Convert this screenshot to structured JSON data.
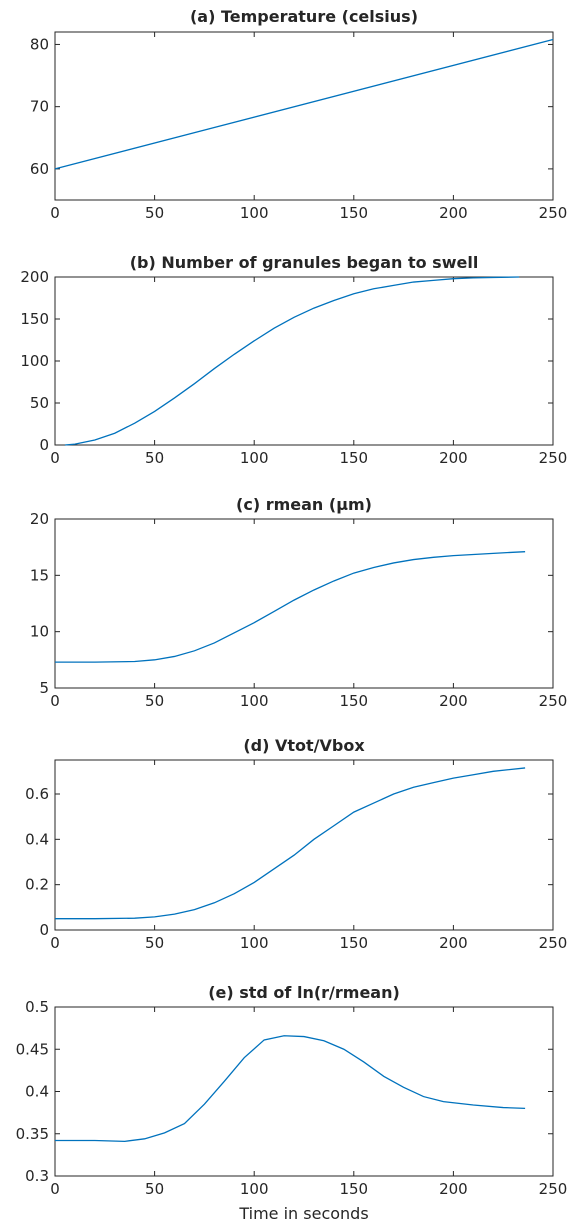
{
  "figure": {
    "xlabel": "Time in seconds"
  },
  "chart_data": [
    {
      "type": "line",
      "title": "(a) Temperature (celsius)",
      "xlabel": "",
      "ylabel": "",
      "xlim": [
        0,
        250
      ],
      "ylim": [
        55,
        82
      ],
      "xticks": [
        0,
        50,
        100,
        150,
        200,
        250
      ],
      "yticks": [
        60,
        70,
        80
      ],
      "grid": false,
      "color": "#0072BD",
      "series": [
        {
          "x": [
            0,
            250
          ],
          "y": [
            60,
            80.8
          ]
        }
      ]
    },
    {
      "type": "line",
      "title": "(b) Number of granules began to swell",
      "xlabel": "",
      "ylabel": "",
      "xlim": [
        0,
        250
      ],
      "ylim": [
        0,
        200
      ],
      "xticks": [
        0,
        50,
        100,
        150,
        200,
        250
      ],
      "yticks": [
        0,
        50,
        100,
        150,
        200
      ],
      "grid": false,
      "color": "#0072BD",
      "series": [
        {
          "x": [
            5,
            10,
            20,
            30,
            40,
            50,
            60,
            70,
            80,
            90,
            100,
            110,
            120,
            130,
            140,
            150,
            160,
            170,
            180,
            190,
            200,
            210,
            220,
            233
          ],
          "y": [
            0,
            1,
            6,
            14,
            26,
            40,
            56,
            73,
            91,
            108,
            124,
            139,
            152,
            163,
            172,
            180,
            186,
            190,
            194,
            196,
            198,
            199,
            199.5,
            200
          ]
        }
      ]
    },
    {
      "type": "line",
      "title": "(c) rmean (µm)",
      "xlabel": "",
      "ylabel": "",
      "xlim": [
        0,
        250
      ],
      "ylim": [
        5,
        20
      ],
      "xticks": [
        0,
        50,
        100,
        150,
        200,
        250
      ],
      "yticks": [
        5,
        10,
        15,
        20
      ],
      "grid": false,
      "color": "#0072BD",
      "series": [
        {
          "x": [
            0,
            20,
            40,
            50,
            60,
            70,
            80,
            90,
            100,
            110,
            120,
            130,
            140,
            150,
            160,
            170,
            180,
            190,
            200,
            210,
            220,
            236
          ],
          "y": [
            7.3,
            7.3,
            7.35,
            7.5,
            7.8,
            8.3,
            9.0,
            9.9,
            10.8,
            11.8,
            12.8,
            13.7,
            14.5,
            15.2,
            15.7,
            16.1,
            16.4,
            16.6,
            16.75,
            16.85,
            16.95,
            17.1
          ]
        }
      ]
    },
    {
      "type": "line",
      "title": "(d) Vtot/Vbox",
      "xlabel": "",
      "ylabel": "",
      "xlim": [
        0,
        250
      ],
      "ylim": [
        0,
        0.75
      ],
      "xticks": [
        0,
        50,
        100,
        150,
        200,
        250
      ],
      "yticks": [
        0,
        0.2,
        0.4,
        0.6
      ],
      "grid": false,
      "color": "#0072BD",
      "series": [
        {
          "x": [
            0,
            20,
            40,
            50,
            60,
            70,
            80,
            90,
            100,
            110,
            120,
            130,
            140,
            150,
            160,
            170,
            180,
            190,
            200,
            210,
            220,
            236
          ],
          "y": [
            0.05,
            0.05,
            0.052,
            0.058,
            0.07,
            0.09,
            0.12,
            0.16,
            0.21,
            0.27,
            0.33,
            0.4,
            0.46,
            0.52,
            0.56,
            0.6,
            0.63,
            0.65,
            0.67,
            0.685,
            0.7,
            0.715
          ]
        }
      ]
    },
    {
      "type": "line",
      "title": "(e) std of ln(r/rmean)",
      "xlabel": "",
      "ylabel": "",
      "xlim": [
        0,
        250
      ],
      "ylim": [
        0.3,
        0.5
      ],
      "xticks": [
        0,
        50,
        100,
        150,
        200,
        250
      ],
      "yticks": [
        0.3,
        0.35,
        0.4,
        0.45,
        0.5
      ],
      "grid": false,
      "color": "#0072BD",
      "series": [
        {
          "x": [
            0,
            20,
            35,
            45,
            55,
            65,
            75,
            85,
            95,
            105,
            115,
            125,
            135,
            145,
            155,
            165,
            175,
            185,
            195,
            210,
            225,
            236
          ],
          "y": [
            0.342,
            0.342,
            0.341,
            0.344,
            0.351,
            0.362,
            0.385,
            0.412,
            0.44,
            0.461,
            0.466,
            0.465,
            0.46,
            0.45,
            0.435,
            0.418,
            0.405,
            0.394,
            0.388,
            0.384,
            0.381,
            0.38
          ]
        }
      ]
    }
  ]
}
